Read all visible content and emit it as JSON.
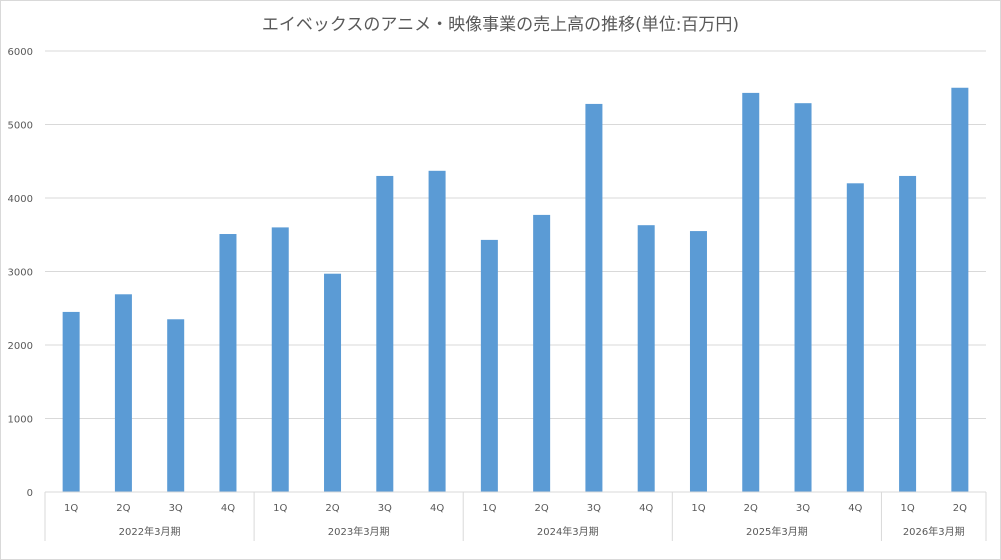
{
  "chart_data": {
    "type": "bar",
    "title": "エイベックスのアニメ・映像事業の売上高の推移(単位:百万円)",
    "xlabel": "",
    "ylabel": "",
    "ylim": [
      0,
      6000
    ],
    "yticks": [
      0,
      1000,
      2000,
      3000,
      4000,
      5000,
      6000
    ],
    "grid": true,
    "color": "#5b9bd5",
    "groups": [
      {
        "label": "2022年3月期",
        "quarters": [
          "1Q",
          "2Q",
          "3Q",
          "4Q"
        ]
      },
      {
        "label": "2023年3月期",
        "quarters": [
          "1Q",
          "2Q",
          "3Q",
          "4Q"
        ]
      },
      {
        "label": "2024年3月期",
        "quarters": [
          "1Q",
          "2Q",
          "3Q",
          "4Q"
        ]
      },
      {
        "label": "2025年3月期",
        "quarters": [
          "1Q",
          "2Q",
          "3Q",
          "4Q"
        ]
      },
      {
        "label": "2026年3月期",
        "quarters": [
          "1Q",
          "2Q"
        ]
      }
    ],
    "values": [
      2450,
      2690,
      2350,
      3510,
      3600,
      2970,
      4300,
      4370,
      3430,
      3770,
      5280,
      3630,
      3550,
      5430,
      5290,
      4200,
      4300,
      5500
    ]
  }
}
